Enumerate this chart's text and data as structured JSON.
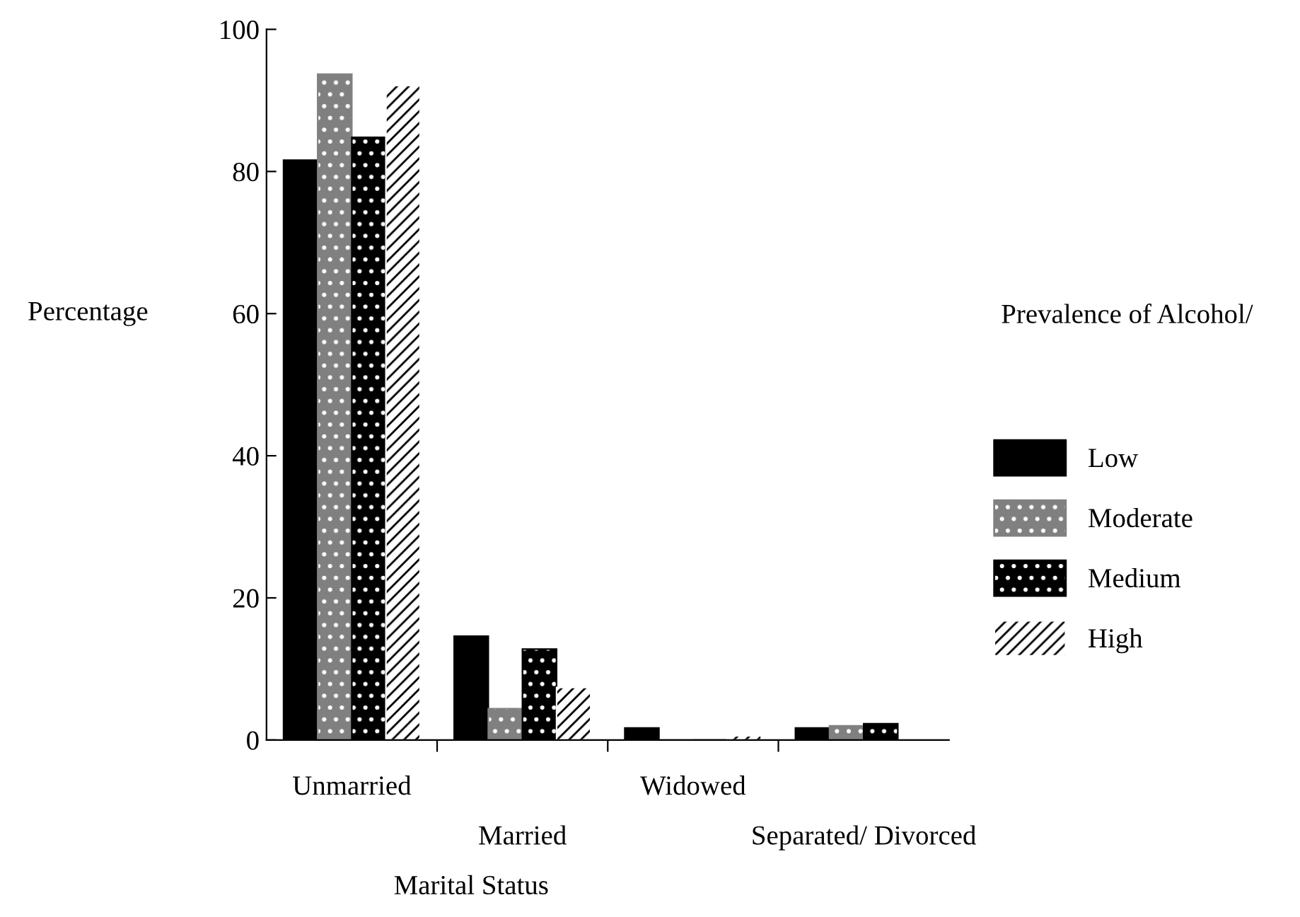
{
  "chart_data": {
    "type": "bar",
    "xlabel": "Marital Status",
    "ylabel": "Percentage",
    "legend_title": "Prevalence of Alcohol/",
    "categories": [
      "Unmarried",
      "Married",
      "Widowed",
      "Separated/ Divorced"
    ],
    "series": [
      {
        "name": "Low",
        "color": "#000000",
        "values": [
          81.6,
          14.6,
          1.7,
          1.7
        ]
      },
      {
        "name": "Moderate",
        "color": "#808080",
        "values": [
          93.7,
          4.4,
          0,
          2.0
        ]
      },
      {
        "name": "Medium",
        "color": "#000000",
        "values": [
          84.8,
          12.8,
          0,
          2.3
        ]
      },
      {
        "name": "High",
        "color": "#ffffff",
        "values": [
          92.1,
          7.4,
          0.6,
          0
        ]
      }
    ],
    "ylim": [
      0,
      100
    ],
    "yticks": [
      0,
      20,
      40,
      60,
      80,
      100
    ],
    "grid": false,
    "legend": "right"
  }
}
